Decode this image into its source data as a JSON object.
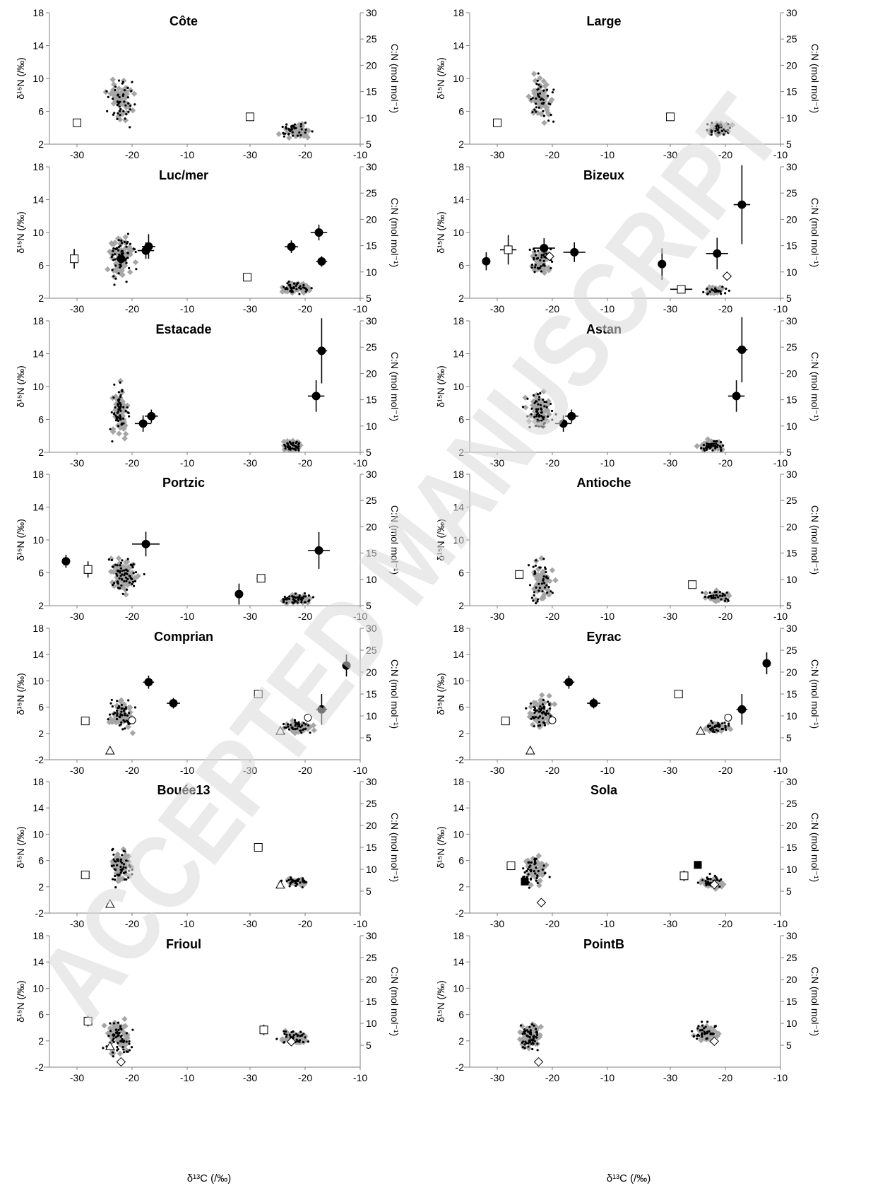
{
  "figure": {
    "watermark": "ACCEPTED MANUSCRIPT",
    "xlabel": "δ¹³C (/‰)",
    "ylabel_left": "δ¹⁵N (/‰)",
    "ylabel_right": "C:N (mol mol⁻¹)",
    "colors": {
      "cloud": "#a6a6a6",
      "points": "#000000",
      "axis": "#808080",
      "watermark": "#d9d9d9"
    }
  },
  "chart_data": [
    {
      "type": "scatter",
      "title": "Côte",
      "ylim_left": [
        2,
        18
      ],
      "ylim_right": [
        5,
        30
      ],
      "xlim": [
        -35,
        -10
      ],
      "isotope": {
        "cloud_center": [
          -22,
          7.3
        ],
        "cloud_spread": [
          1.5,
          1.6
        ],
        "cloud_n": 55,
        "markers": [
          {
            "shape": "open-square",
            "x": -30,
            "y": 4.6
          }
        ]
      },
      "cn": {
        "cloud_center": [
          -21.5,
          7.5
        ],
        "cloud_spread": [
          1.8,
          0.8
        ],
        "cloud_n": 45,
        "markers": [
          {
            "shape": "open-square",
            "x": -30,
            "y": 10.2
          }
        ]
      }
    },
    {
      "type": "scatter",
      "title": "Large",
      "ylim_left": [
        2,
        18
      ],
      "ylim_right": [
        5,
        30
      ],
      "xlim": [
        -35,
        -10
      ],
      "isotope": {
        "cloud_center": [
          -22,
          7.5
        ],
        "cloud_spread": [
          1.3,
          1.7
        ],
        "cloud_n": 50,
        "markers": [
          {
            "shape": "open-square",
            "x": -30,
            "y": 4.6
          }
        ]
      },
      "cn": {
        "cloud_center": [
          -21.5,
          7.8
        ],
        "cloud_spread": [
          1.6,
          0.8
        ],
        "cloud_n": 40,
        "markers": [
          {
            "shape": "open-square",
            "x": -30,
            "y": 10.2
          }
        ]
      }
    },
    {
      "type": "scatter",
      "title": "Luc/mer",
      "ylim_left": [
        2,
        18
      ],
      "ylim_right": [
        5,
        30
      ],
      "xlim": [
        -35,
        -10
      ],
      "isotope": {
        "cloud_center": [
          -22,
          7
        ],
        "cloud_spread": [
          1.5,
          1.8
        ],
        "cloud_n": 65,
        "markers": [
          {
            "shape": "open-square",
            "x": -30.5,
            "y": 6.8,
            "xerr": 0.3,
            "yerr": 1.2
          },
          {
            "shape": "filled-circle",
            "x": -17.5,
            "y": 7.8,
            "xerr": 1.5,
            "yerr": 1.0
          },
          {
            "shape": "filled-circle",
            "x": -17,
            "y": 8.3,
            "xerr": 1.2,
            "yerr": 1.5
          },
          {
            "shape": "filled-circle",
            "x": -22,
            "y": 6.8,
            "xerr": 1.0,
            "yerr": 1.0
          }
        ]
      },
      "cn": {
        "cloud_center": [
          -21.5,
          7
        ],
        "cloud_spread": [
          1.5,
          0.8
        ],
        "cloud_n": 45,
        "markers": [
          {
            "shape": "open-square",
            "x": -30.5,
            "y": 9
          },
          {
            "shape": "filled-circle",
            "x": -22.5,
            "y": 14.8,
            "xerr": 1.2,
            "yerr": 1.2
          },
          {
            "shape": "filled-circle",
            "x": -17.5,
            "y": 17.5,
            "xerr": 1.5,
            "yerr": 1.5
          },
          {
            "shape": "filled-circle",
            "x": -17,
            "y": 12,
            "xerr": 1.0,
            "yerr": 1.0
          }
        ]
      }
    },
    {
      "type": "scatter",
      "title": "Bizeux",
      "ylim_left": [
        2,
        18
      ],
      "ylim_right": [
        5,
        30
      ],
      "xlim": [
        -35,
        -10
      ],
      "isotope": {
        "cloud_center": [
          -22,
          6.4
        ],
        "cloud_spread": [
          1.3,
          1.2
        ],
        "cloud_n": 45,
        "markers": [
          {
            "shape": "filled-circle",
            "x": -32,
            "y": 6.5,
            "xerr": 0.3,
            "yerr": 1.1
          },
          {
            "shape": "open-square",
            "x": -28,
            "y": 7.9,
            "xerr": 1.5,
            "yerr": 1.8
          },
          {
            "shape": "filled-circle",
            "x": -21.5,
            "y": 8.1,
            "xerr": 2.0,
            "yerr": 1.2
          },
          {
            "shape": "filled-circle",
            "x": -16,
            "y": 7.6,
            "xerr": 2.0,
            "yerr": 1.2
          },
          {
            "shape": "open-diamond",
            "x": -20.5,
            "y": 7.1
          }
        ]
      },
      "cn": {
        "cloud_center": [
          -22,
          6.5
        ],
        "cloud_spread": [
          1.3,
          0.5
        ],
        "cloud_n": 30,
        "markers": [
          {
            "shape": "filled-circle",
            "x": -31.5,
            "y": 11.5,
            "xerr": 0.5,
            "yerr": 3.0
          },
          {
            "shape": "open-square",
            "x": -28,
            "y": 6.7,
            "xerr": 2.0,
            "yerr": 0.3
          },
          {
            "shape": "filled-circle",
            "x": -21.5,
            "y": 13.5,
            "xerr": 2.0,
            "yerr": 3.0
          },
          {
            "shape": "filled-circle",
            "x": -17,
            "y": 22.8,
            "xerr": 1.5,
            "yerr": 7.5
          },
          {
            "shape": "open-diamond",
            "x": -19.7,
            "y": 9.2
          }
        ]
      }
    },
    {
      "type": "scatter",
      "title": "Estacade",
      "ylim_left": [
        2,
        18
      ],
      "ylim_right": [
        5,
        30
      ],
      "xlim": [
        -35,
        -10
      ],
      "isotope": {
        "cloud_center": [
          -22.2,
          7
        ],
        "cloud_spread": [
          1.0,
          1.8
        ],
        "cloud_n": 70,
        "markers": [
          {
            "shape": "filled-circle",
            "x": -18,
            "y": 5.5,
            "xerr": 1.5,
            "yerr": 1.0
          },
          {
            "shape": "filled-circle",
            "x": -16.5,
            "y": 6.4,
            "xerr": 1.2,
            "yerr": 0.8
          }
        ]
      },
      "cn": {
        "cloud_center": [
          -22.3,
          6.3
        ],
        "cloud_spread": [
          1.0,
          0.6
        ],
        "cloud_n": 45,
        "markers": [
          {
            "shape": "filled-circle",
            "x": -18,
            "y": 15.7,
            "xerr": 1.5,
            "yerr": 3.0
          },
          {
            "shape": "filled-circle",
            "x": -17,
            "y": 24.3,
            "xerr": 1.0,
            "yerr": 6.2
          }
        ]
      }
    },
    {
      "type": "scatter",
      "title": "Astan",
      "ylim_left": [
        2,
        18
      ],
      "ylim_right": [
        5,
        30
      ],
      "xlim": [
        -35,
        -10
      ],
      "isotope": {
        "cloud_center": [
          -22.5,
          7
        ],
        "cloud_spread": [
          1.4,
          1.4
        ],
        "cloud_n": 70,
        "markers": [
          {
            "shape": "filled-circle",
            "x": -18,
            "y": 5.5,
            "xerr": 1.5,
            "yerr": 1.0
          },
          {
            "shape": "filled-circle",
            "x": -16.5,
            "y": 6.4,
            "xerr": 1.2,
            "yerr": 0.8
          }
        ]
      },
      "cn": {
        "cloud_center": [
          -22.5,
          6.3
        ],
        "cloud_spread": [
          1.4,
          0.6
        ],
        "cloud_n": 50,
        "markers": [
          {
            "shape": "filled-circle",
            "x": -18,
            "y": 15.7,
            "xerr": 1.5,
            "yerr": 3.0
          },
          {
            "shape": "filled-circle",
            "x": -17,
            "y": 24.5,
            "xerr": 1.0,
            "yerr": 6.2
          }
        ]
      }
    },
    {
      "type": "scatter",
      "title": "Portzic",
      "ylim_left": [
        2,
        18
      ],
      "ylim_right": [
        5,
        30
      ],
      "xlim": [
        -35,
        -10
      ],
      "isotope": {
        "cloud_center": [
          -21.5,
          5.8
        ],
        "cloud_spread": [
          1.7,
          1.4
        ],
        "cloud_n": 80,
        "markers": [
          {
            "shape": "filled-circle",
            "x": -32,
            "y": 7.4,
            "xerr": 0.5,
            "yerr": 0.8
          },
          {
            "shape": "open-square",
            "x": -28,
            "y": 6.4,
            "xerr": 0.5,
            "yerr": 1.0
          },
          {
            "shape": "filled-circle",
            "x": -17.5,
            "y": 9.5,
            "xerr": 2.5,
            "yerr": 1.5
          }
        ]
      },
      "cn": {
        "cloud_center": [
          -21.5,
          6.3
        ],
        "cloud_spread": [
          1.7,
          0.6
        ],
        "cloud_n": 55,
        "markers": [
          {
            "shape": "filled-circle",
            "x": -32,
            "y": 7.2,
            "xerr": 0.5,
            "yerr": 2.0
          },
          {
            "shape": "open-square",
            "x": -28,
            "y": 10.2,
            "xerr": 0.8,
            "yerr": 0.3
          },
          {
            "shape": "filled-circle",
            "x": -17.5,
            "y": 15.5,
            "xerr": 2.0,
            "yerr": 3.5
          }
        ]
      }
    },
    {
      "type": "scatter",
      "title": "Antioche",
      "ylim_left": [
        2,
        18
      ],
      "ylim_right": [
        5,
        30
      ],
      "xlim": [
        -35,
        -10
      ],
      "isotope": {
        "cloud_center": [
          -22,
          5
        ],
        "cloud_spread": [
          1.4,
          1.7
        ],
        "cloud_n": 50,
        "markers": [
          {
            "shape": "open-square",
            "x": -26,
            "y": 5.8
          }
        ]
      },
      "cn": {
        "cloud_center": [
          -21.5,
          6.8
        ],
        "cloud_spread": [
          1.6,
          0.7
        ],
        "cloud_n": 40,
        "markers": [
          {
            "shape": "open-square",
            "x": -26,
            "y": 9
          }
        ]
      }
    },
    {
      "type": "scatter",
      "title": "Comprian",
      "ylim_left": [
        -2,
        18
      ],
      "ylim_right": [
        0,
        30
      ],
      "xlim": [
        -35,
        -10
      ],
      "isotope": {
        "cloud_center": [
          -22,
          4.8
        ],
        "cloud_spread": [
          1.3,
          1.3
        ],
        "cloud_n": 60,
        "markers": [
          {
            "shape": "open-square",
            "x": -28.5,
            "y": 3.9
          },
          {
            "shape": "open-triangle",
            "x": -24,
            "y": -0.6
          },
          {
            "shape": "open-circle",
            "x": -20,
            "y": 4.0
          },
          {
            "shape": "filled-circle",
            "x": -17,
            "y": 9.8,
            "xerr": 1.0,
            "yerr": 1.0
          },
          {
            "shape": "filled-circle",
            "x": -12.5,
            "y": 6.6,
            "xerr": 1.2,
            "yerr": 0.8
          }
        ]
      },
      "cn": {
        "cloud_center": [
          -21.5,
          7.5
        ],
        "cloud_spread": [
          1.5,
          0.9
        ],
        "cloud_n": 45,
        "markers": [
          {
            "shape": "open-square",
            "x": -28.5,
            "y": 15
          },
          {
            "shape": "open-triangle",
            "x": -24.5,
            "y": 6.6
          },
          {
            "shape": "open-circle",
            "x": -19.5,
            "y": 9.6
          },
          {
            "shape": "filled-circle",
            "x": -17,
            "y": 11.5,
            "xerr": 1.0,
            "yerr": 3.5
          },
          {
            "shape": "filled-circle",
            "x": -12.5,
            "y": 21.5,
            "xerr": 0.5,
            "yerr": 2.5
          }
        ]
      }
    },
    {
      "type": "scatter",
      "title": "Eyrac",
      "ylim_left": [
        -2,
        18
      ],
      "ylim_right": [
        0,
        30
      ],
      "xlim": [
        -35,
        -10
      ],
      "isotope": {
        "cloud_center": [
          -22,
          5.2
        ],
        "cloud_spread": [
          1.3,
          1.4
        ],
        "cloud_n": 60,
        "markers": [
          {
            "shape": "open-square",
            "x": -28.5,
            "y": 3.9
          },
          {
            "shape": "open-triangle",
            "x": -24,
            "y": -0.6
          },
          {
            "shape": "open-circle",
            "x": -20,
            "y": 4.0
          },
          {
            "shape": "filled-circle",
            "x": -17,
            "y": 9.8,
            "xerr": 1.0,
            "yerr": 1.0
          },
          {
            "shape": "filled-circle",
            "x": -12.5,
            "y": 6.6,
            "xerr": 1.2,
            "yerr": 0.8
          }
        ]
      },
      "cn": {
        "cloud_center": [
          -21.5,
          7.5
        ],
        "cloud_spread": [
          1.5,
          0.9
        ],
        "cloud_n": 45,
        "markers": [
          {
            "shape": "open-square",
            "x": -28.5,
            "y": 15
          },
          {
            "shape": "open-triangle",
            "x": -24.5,
            "y": 6.6
          },
          {
            "shape": "open-circle",
            "x": -19.5,
            "y": 9.6
          },
          {
            "shape": "filled-circle",
            "x": -17,
            "y": 11.5,
            "xerr": 1.0,
            "yerr": 3.5
          },
          {
            "shape": "filled-circle",
            "x": -12.5,
            "y": 22,
            "xerr": 0.5,
            "yerr": 2.5
          }
        ]
      }
    },
    {
      "type": "scatter",
      "title": "Bouée13",
      "ylim_left": [
        -2,
        18
      ],
      "ylim_right": [
        0,
        30
      ],
      "xlim": [
        -35,
        -10
      ],
      "isotope": {
        "cloud_center": [
          -22,
          5.2
        ],
        "cloud_spread": [
          1.1,
          1.6
        ],
        "cloud_n": 60,
        "markers": [
          {
            "shape": "open-square",
            "x": -28.5,
            "y": 3.8
          },
          {
            "shape": "open-triangle",
            "x": -24,
            "y": -0.6
          }
        ]
      },
      "cn": {
        "cloud_center": [
          -21.5,
          7.2
        ],
        "cloud_spread": [
          1.5,
          0.6
        ],
        "cloud_n": 40,
        "markers": [
          {
            "shape": "open-square",
            "x": -28.5,
            "y": 15
          },
          {
            "shape": "open-triangle",
            "x": -24.5,
            "y": 6.5
          }
        ]
      }
    },
    {
      "type": "scatter",
      "title": "Sola",
      "ylim_left": [
        -2,
        18
      ],
      "ylim_right": [
        0,
        30
      ],
      "xlim": [
        -35,
        -10
      ],
      "isotope": {
        "cloud_center": [
          -23,
          4.5
        ],
        "cloud_spread": [
          1.3,
          1.4
        ],
        "cloud_n": 55,
        "markers": [
          {
            "shape": "open-square",
            "x": -27.5,
            "y": 5.2
          },
          {
            "shape": "filled-square",
            "x": -25,
            "y": 2.8
          },
          {
            "shape": "open-diamond",
            "x": -22,
            "y": -0.4
          }
        ]
      },
      "cn": {
        "cloud_center": [
          -22.5,
          7
        ],
        "cloud_spread": [
          1.3,
          0.9
        ],
        "cloud_n": 45,
        "markers": [
          {
            "shape": "open-square",
            "x": -27.5,
            "y": 8.5,
            "xerr": 0.4,
            "yerr": 1.2
          },
          {
            "shape": "filled-square",
            "x": -25,
            "y": 11
          },
          {
            "shape": "open-diamond",
            "x": -22,
            "y": 6.5
          }
        ]
      }
    },
    {
      "type": "scatter",
      "title": "Frioul",
      "ylim_left": [
        -2,
        18
      ],
      "ylim_right": [
        0,
        30
      ],
      "xlim": [
        -35,
        -10
      ],
      "isotope": {
        "cloud_center": [
          -22.5,
          2.5
        ],
        "cloud_spread": [
          1.4,
          1.6
        ],
        "cloud_n": 70,
        "markers": [
          {
            "shape": "open-square",
            "x": -28,
            "y": 5.0,
            "xerr": 0.4,
            "yerr": 0.8
          },
          {
            "shape": "open-triangle",
            "x": -24,
            "y": 1.2
          },
          {
            "shape": "open-diamond",
            "x": -22,
            "y": -1.2
          }
        ]
      },
      "cn": {
        "cloud_center": [
          -22,
          6.8
        ],
        "cloud_spread": [
          1.5,
          0.9
        ],
        "cloud_n": 45,
        "markers": [
          {
            "shape": "open-square",
            "x": -27.5,
            "y": 8.5,
            "xerr": 0.4,
            "yerr": 1.2
          },
          {
            "shape": "open-diamond",
            "x": -22.5,
            "y": 5.8
          }
        ]
      }
    },
    {
      "type": "scatter",
      "title": "PointB",
      "ylim_left": [
        -2,
        18
      ],
      "ylim_right": [
        0,
        30
      ],
      "xlim": [
        -35,
        -10
      ],
      "isotope": {
        "cloud_center": [
          -24,
          2.7
        ],
        "cloud_spread": [
          1.2,
          1.3
        ],
        "cloud_n": 70,
        "markers": [
          {
            "shape": "open-diamond",
            "x": -22.5,
            "y": -1.2
          }
        ]
      },
      "cn": {
        "cloud_center": [
          -23.5,
          8
        ],
        "cloud_spread": [
          1.2,
          1.2
        ],
        "cloud_n": 45,
        "markers": [
          {
            "shape": "open-diamond",
            "x": -22,
            "y": 5.9
          }
        ]
      }
    }
  ]
}
